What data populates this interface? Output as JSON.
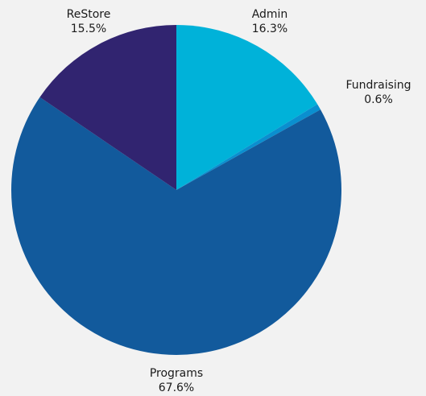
{
  "chart_data": {
    "type": "pie",
    "slices": [
      {
        "label": "Admin",
        "value": 16.3,
        "display": "16.3%",
        "color": "#00b2d9"
      },
      {
        "label": "Fundraising",
        "value": 0.6,
        "display": "0.6%",
        "color": "#0a8fcf"
      },
      {
        "label": "Programs",
        "value": 67.6,
        "display": "67.6%",
        "color": "#125a9c"
      },
      {
        "label": "ReStore",
        "value": 15.5,
        "display": "15.5%",
        "color": "#312470"
      }
    ],
    "start": "12 o'clock",
    "direction": "clockwise",
    "legend": "none"
  },
  "background_color": "#f2f2f2"
}
